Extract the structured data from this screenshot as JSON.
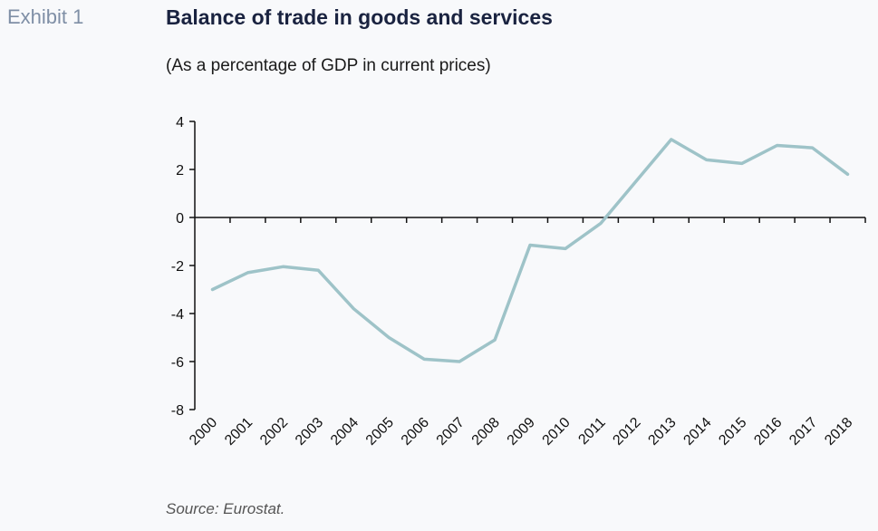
{
  "exhibit_label": "Exhibit 1",
  "title": "Balance of trade in goods and services",
  "subtitle": "(As a percentage of GDP in current prices)",
  "source": "Source: Eurostat.",
  "colors": {
    "line": "#9ec3c8",
    "axis": "#111111",
    "title": "#1a2340",
    "exhibit": "#7f8fa6"
  },
  "chart_data": {
    "type": "line",
    "title": "Balance of trade in goods and services",
    "subtitle": "(As a percentage of GDP in current prices)",
    "xlabel": "",
    "ylabel": "",
    "ylim": [
      -8,
      4
    ],
    "yticks": [
      4,
      2,
      0,
      -2,
      -4,
      -6,
      -8
    ],
    "grid": false,
    "legend": "none",
    "categories": [
      "2000",
      "2001",
      "2002",
      "2003",
      "2004",
      "2005",
      "2006",
      "2007",
      "2008",
      "2009",
      "2010",
      "2011",
      "2012",
      "2013",
      "2014",
      "2015",
      "2016",
      "2017",
      "2018"
    ],
    "series": [
      {
        "values": [
          -3.0,
          -2.3,
          -2.05,
          -2.2,
          -3.8,
          -5.0,
          -5.9,
          -6.0,
          -5.1,
          -1.15,
          -1.3,
          -0.25,
          1.5,
          3.25,
          2.4,
          2.25,
          3.0,
          2.9,
          1.8
        ]
      }
    ]
  }
}
